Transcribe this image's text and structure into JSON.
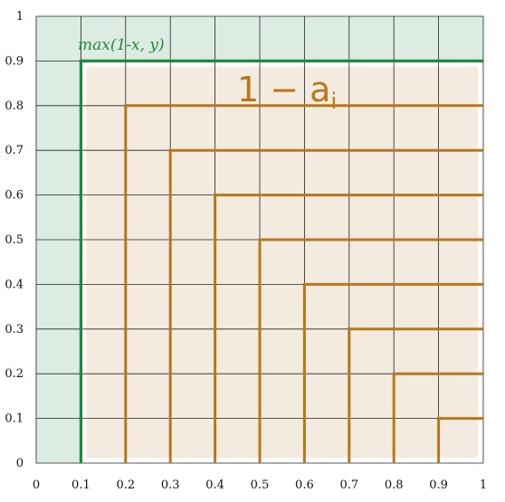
{
  "chart_data": {
    "type": "line",
    "xlim": [
      0,
      1
    ],
    "ylim": [
      0,
      1
    ],
    "grid": true,
    "x_ticks": [
      "0",
      "0.1",
      "0.2",
      "0.3",
      "0.4",
      "0.5",
      "0.6",
      "0.7",
      "0.8",
      "0.9",
      "1"
    ],
    "y_ticks": [
      "0",
      "0.1",
      "0.2",
      "0.3",
      "0.4",
      "0.5",
      "0.6",
      "0.7",
      "0.8",
      "0.9",
      "1"
    ],
    "annotations": {
      "green": "max(1-x, y)",
      "brown": "1 − a",
      "brown_subscript": "i"
    },
    "series": [
      {
        "name": "max(1-x, y)",
        "color": "#1f8a3a",
        "points": [
          [
            0.1,
            0
          ],
          [
            0.1,
            0.9
          ],
          [
            1,
            0.9
          ]
        ]
      }
    ],
    "brown_steps": [
      {
        "x": 0.2,
        "y": 0.8
      },
      {
        "x": 0.3,
        "y": 0.7
      },
      {
        "x": 0.4,
        "y": 0.6
      },
      {
        "x": 0.5,
        "y": 0.5
      },
      {
        "x": 0.6,
        "y": 0.4
      },
      {
        "x": 0.7,
        "y": 0.3
      },
      {
        "x": 0.8,
        "y": 0.2
      },
      {
        "x": 0.9,
        "y": 0.1
      }
    ],
    "colors": {
      "green": "#1f8a3a",
      "brown": "#b8771c",
      "green_fill": "#dcece2",
      "brown_fill": "#f3ebdf",
      "grid": "#222222"
    }
  }
}
